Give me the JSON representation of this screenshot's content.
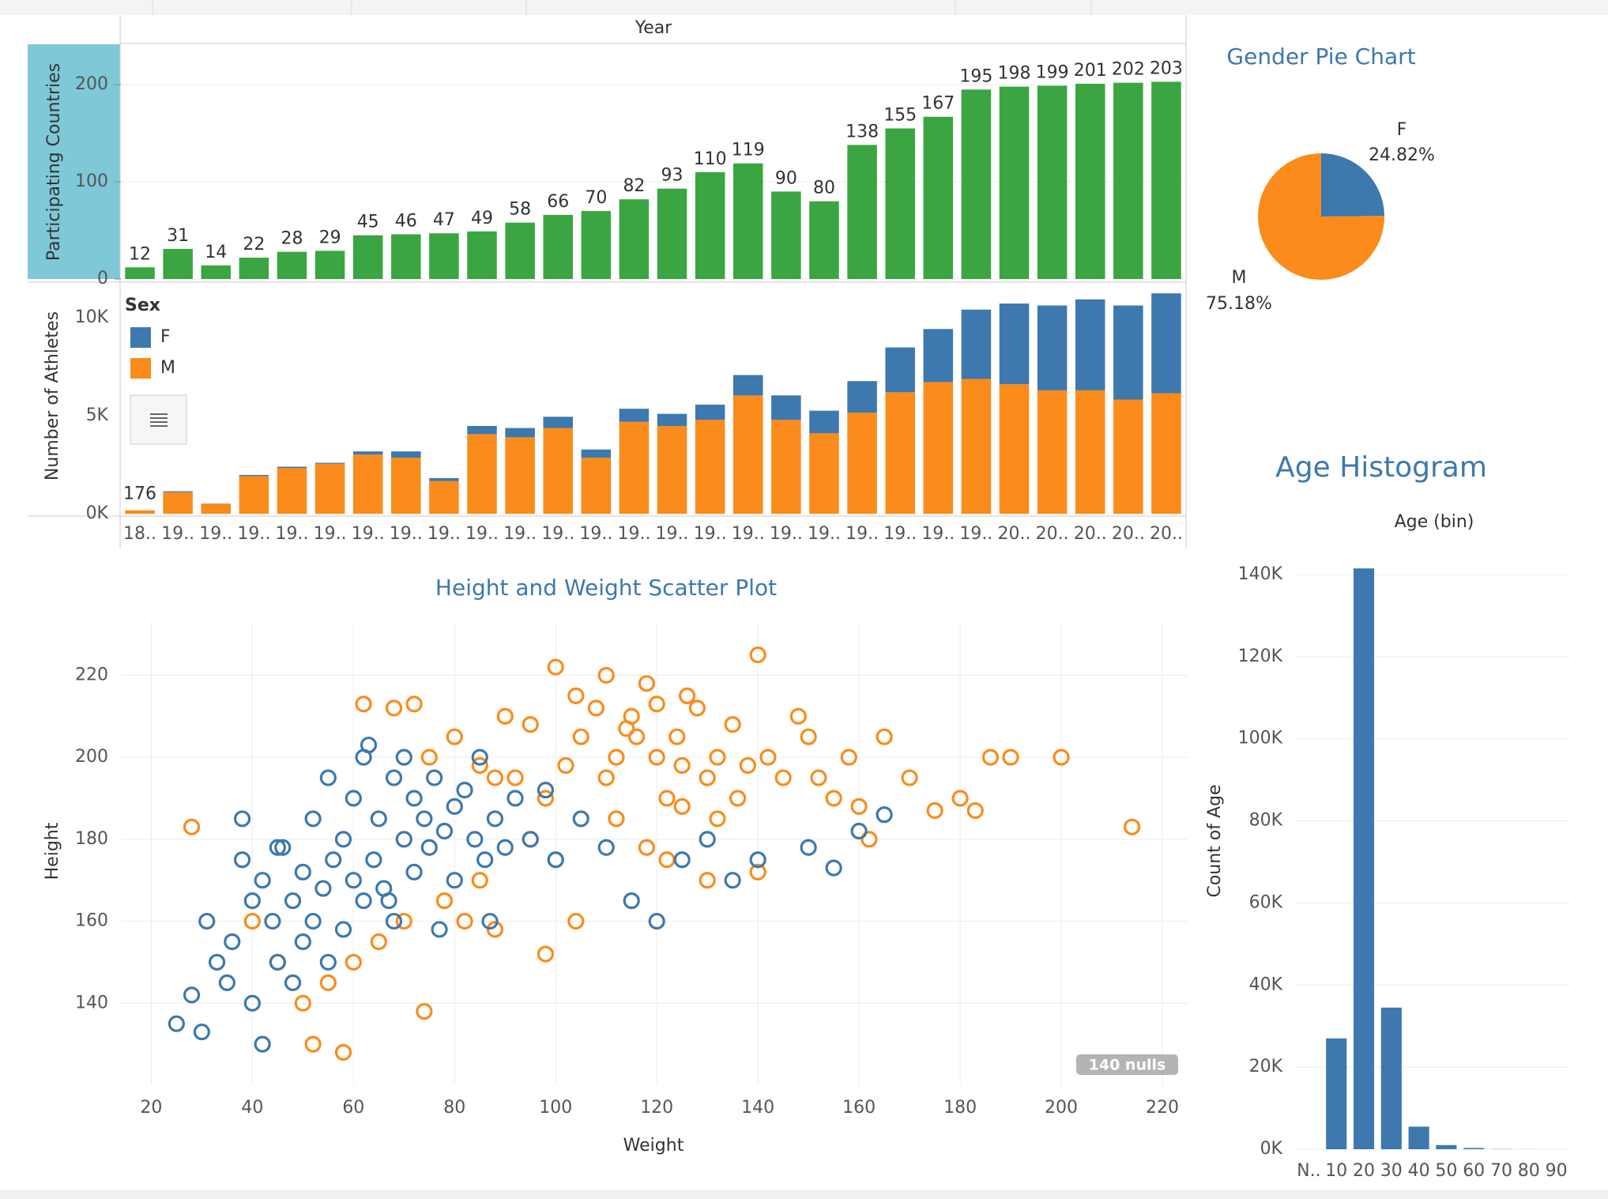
{
  "chart_data": [
    {
      "type": "bar",
      "xlabel": "Year",
      "ylabel": "Participating Countries",
      "values": [
        12,
        31,
        14,
        22,
        28,
        29,
        45,
        46,
        47,
        49,
        58,
        66,
        70,
        82,
        93,
        110,
        119,
        90,
        80,
        138,
        155,
        167,
        195,
        198,
        199,
        201,
        202,
        203
      ],
      "color": "#3ba542",
      "show_values": true,
      "ylim": [
        0,
        240
      ],
      "yticks": [
        0,
        100,
        200
      ],
      "grid": true
    },
    {
      "type": "stacked_bar",
      "ylabel": "Number of Athletes",
      "legend_title": "Sex",
      "categories": [
        "18..",
        "19..",
        "19..",
        "19..",
        "19..",
        "19..",
        "19..",
        "19..",
        "19..",
        "19..",
        "19..",
        "19..",
        "19..",
        "19..",
        "19..",
        "19..",
        "19..",
        "19..",
        "19..",
        "19..",
        "19..",
        "19..",
        "19..",
        "20..",
        "20..",
        "20..",
        "20..",
        "20.."
      ],
      "series": [
        {
          "name": "M",
          "color": "#fb8b1a",
          "values": [
            176,
            1100,
            510,
            1920,
            2340,
            2550,
            3020,
            2860,
            1670,
            4060,
            3900,
            4375,
            2860,
            4690,
            4480,
            4790,
            6040,
            4790,
            4110,
            5160,
            6200,
            6720,
            6880,
            6610,
            6300,
            6300,
            5830,
            6150
          ],
          "value_labels": [
            "176",
            null,
            null,
            null,
            null,
            null,
            null,
            null,
            null,
            null,
            null,
            null,
            null,
            null,
            null,
            null,
            null,
            null,
            null,
            null,
            null,
            null,
            null,
            null,
            null,
            null,
            null,
            null
          ]
        },
        {
          "name": "F",
          "color": "#3d78ae",
          "values": [
            0,
            50,
            10,
            60,
            60,
            50,
            160,
            320,
            150,
            420,
            475,
            575,
            420,
            670,
            620,
            780,
            1040,
            1250,
            1150,
            1610,
            2290,
            2710,
            3540,
            4120,
            4330,
            4640,
            4800,
            5100
          ]
        }
      ],
      "legend_order": [
        1,
        0
      ],
      "ylim": [
        0,
        11700
      ],
      "yticks": [
        {
          "value": 0,
          "label": "0K"
        },
        {
          "value": 5000,
          "label": "5K"
        },
        {
          "value": 10000,
          "label": "10K"
        }
      ]
    },
    {
      "type": "pie",
      "title": "Gender Pie Chart",
      "categories": [
        "F",
        "M"
      ],
      "values": [
        24.82,
        75.18
      ],
      "value_labels": [
        "24.82%",
        "75.18%"
      ],
      "colors": [
        "#3d78ae",
        "#fb8b1a"
      ]
    },
    {
      "type": "bar",
      "title": "Age Histogram",
      "xlabel": "Age (bin)",
      "ylabel": "Count of Age",
      "categories": [
        "N..",
        "10",
        "20",
        "30",
        "40",
        "50",
        "60",
        "70",
        "80",
        "90"
      ],
      "values": [
        0,
        27000,
        141500,
        34500,
        5500,
        1000,
        300,
        50,
        10,
        0
      ],
      "color": "#3d78ae",
      "ylim": [
        0,
        145000
      ],
      "yticks": [
        {
          "value": 0,
          "label": "0K"
        },
        {
          "value": 20000,
          "label": "20K"
        },
        {
          "value": 40000,
          "label": "40K"
        },
        {
          "value": 60000,
          "label": "60K"
        },
        {
          "value": 80000,
          "label": "80K"
        },
        {
          "value": 100000,
          "label": "100K"
        },
        {
          "value": 120000,
          "label": "120K"
        },
        {
          "value": 140000,
          "label": "140K"
        }
      ],
      "grid": true
    },
    {
      "type": "scatter",
      "title": "Height and Weight Scatter Plot",
      "xlabel": "Weight",
      "ylabel": "Height",
      "annotation": "140 nulls",
      "series": [
        {
          "color": "#fb8b1a",
          "x": [
            28,
            62,
            68,
            72,
            75,
            80,
            85,
            88,
            90,
            92,
            95,
            98,
            100,
            102,
            104,
            105,
            108,
            110,
            110,
            112,
            114,
            115,
            116,
            118,
            120,
            120,
            122,
            124,
            125,
            126,
            128,
            130,
            132,
            135,
            136,
            138,
            140,
            142,
            145,
            148,
            150,
            152,
            155,
            158,
            160,
            162,
            165,
            170,
            175,
            180,
            183,
            186,
            190,
            200,
            214,
            95,
            100,
            85,
            78,
            70,
            65,
            60,
            55,
            50,
            45,
            40,
            52,
            58,
            74,
            82,
            88,
            112,
            118,
            122,
            130,
            98,
            104,
            140,
            132,
            125
          ],
          "values": [
            183,
            213,
            212,
            213,
            200,
            205,
            198,
            195,
            210,
            195,
            208,
            190,
            222,
            198,
            215,
            205,
            212,
            220,
            195,
            200,
            207,
            210,
            205,
            218,
            200,
            213,
            190,
            205,
            198,
            215,
            212,
            195,
            200,
            208,
            190,
            198,
            225,
            200,
            195,
            210,
            205,
            195,
            190,
            200,
            188,
            180,
            205,
            195,
            187,
            190,
            187,
            200,
            200,
            200,
            183,
            180,
            175,
            170,
            165,
            160,
            155,
            150,
            145,
            140,
            150,
            160,
            130,
            128,
            138,
            160,
            158,
            185,
            178,
            175,
            170,
            152,
            160,
            172,
            185,
            188
          ]
        },
        {
          "color": "#3d78ae",
          "x": [
            25,
            28,
            30,
            31,
            33,
            35,
            36,
            38,
            40,
            40,
            42,
            42,
            44,
            45,
            46,
            48,
            48,
            50,
            50,
            52,
            52,
            54,
            55,
            56,
            58,
            58,
            60,
            60,
            62,
            62,
            64,
            65,
            66,
            68,
            68,
            70,
            70,
            72,
            72,
            74,
            75,
            76,
            78,
            80,
            80,
            82,
            84,
            85,
            86,
            88,
            90,
            92,
            95,
            98,
            100,
            105,
            110,
            115,
            120,
            125,
            130,
            135,
            140,
            150,
            155,
            160,
            165,
            38,
            45,
            55,
            63,
            67,
            77,
            87
          ],
          "values": [
            135,
            142,
            133,
            160,
            150,
            145,
            155,
            175,
            165,
            140,
            170,
            130,
            160,
            150,
            178,
            165,
            145,
            172,
            155,
            185,
            160,
            168,
            150,
            175,
            180,
            158,
            170,
            190,
            165,
            200,
            175,
            185,
            168,
            195,
            160,
            180,
            200,
            172,
            190,
            185,
            178,
            195,
            182,
            188,
            170,
            192,
            180,
            200,
            175,
            185,
            178,
            190,
            180,
            192,
            175,
            185,
            178,
            165,
            160,
            175,
            180,
            170,
            175,
            178,
            173,
            182,
            186,
            185,
            178,
            195,
            203,
            165,
            158,
            160
          ]
        }
      ],
      "xlim": [
        14,
        225
      ],
      "xticks": [
        20,
        40,
        60,
        80,
        100,
        120,
        140,
        160,
        180,
        200,
        220
      ],
      "ylim": [
        120,
        233
      ],
      "yticks": [
        140,
        160,
        180,
        200,
        220
      ],
      "grid": true
    }
  ]
}
